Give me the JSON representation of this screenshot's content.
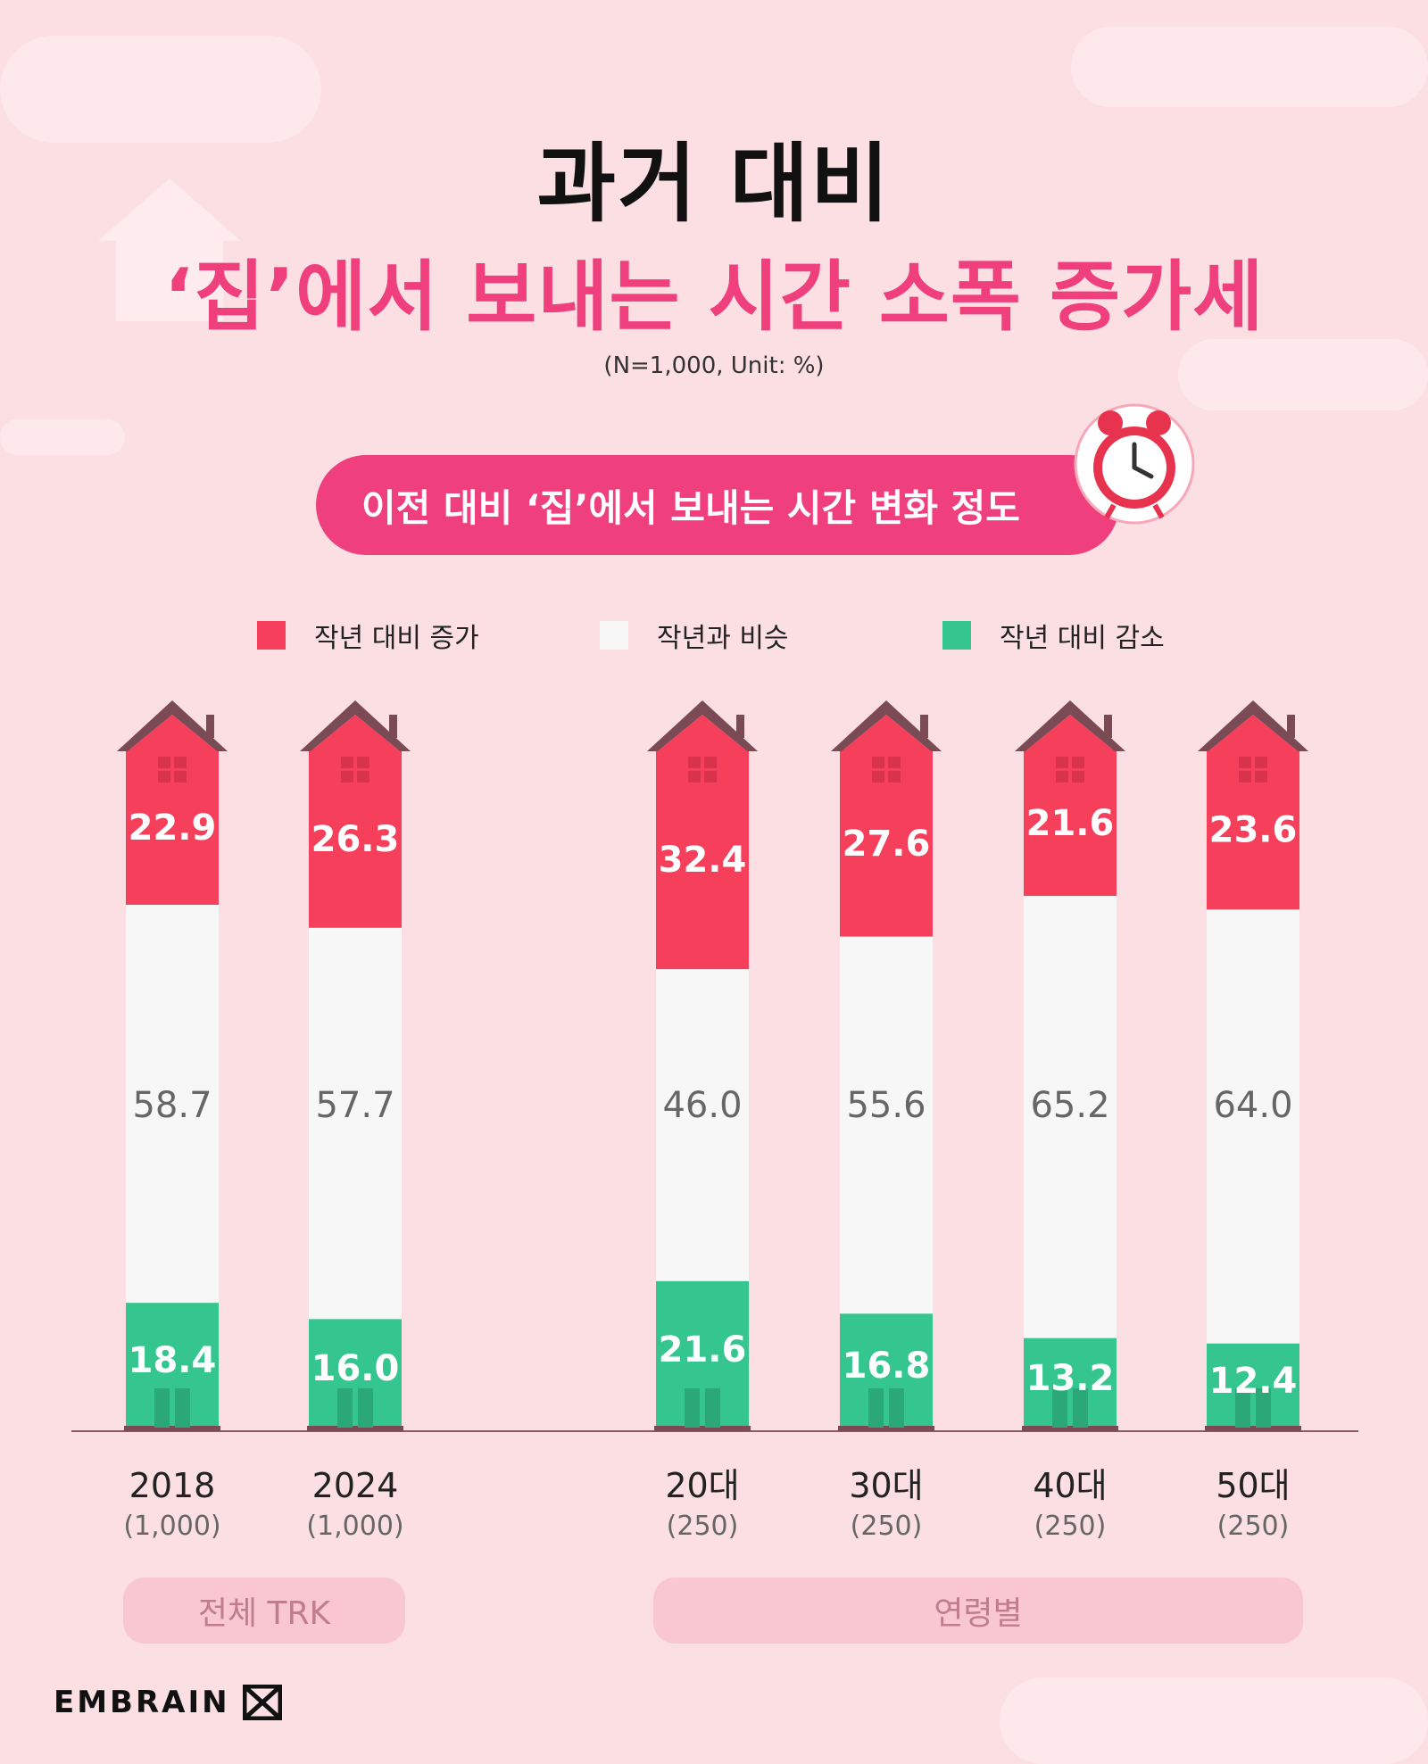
{
  "header": {
    "title_line1": "과거 대비",
    "title_line2": "‘집’에서 보내는 시간 소폭 증가세",
    "note": "(N=1,000,  Unit: %)",
    "pill_label": "이전 대비 ‘집’에서 보내는 시간 변화 정도"
  },
  "icons": {
    "clock": "alarm-clock-icon",
    "house": "house-icon",
    "brand_logo": "embrain-logo-icon"
  },
  "colors": {
    "increase": "#f53f5b",
    "similar": "#f7f7f7",
    "decrease": "#35c58f",
    "accent": "#ef3f7c",
    "roof": "#7a4a55"
  },
  "groups": [
    "전체 TRK",
    "연령별"
  ],
  "brand": "EMBRAIN",
  "chart_data": {
    "type": "bar",
    "stacked": true,
    "orientation": "vertical",
    "categories": [
      "2018",
      "2024",
      "20대",
      "30대",
      "40대",
      "50대"
    ],
    "category_sub": [
      "(1,000)",
      "(1,000)",
      "(250)",
      "(250)",
      "(250)",
      "(250)"
    ],
    "series": [
      {
        "name": "작년 대비 증가",
        "values": [
          22.9,
          26.3,
          32.4,
          27.6,
          21.6,
          23.6
        ]
      },
      {
        "name": "작년과 비슷",
        "values": [
          58.7,
          57.7,
          46.0,
          55.6,
          65.2,
          64.0
        ]
      },
      {
        "name": "작년 대비 감소",
        "values": [
          18.4,
          16.0,
          21.6,
          16.8,
          13.2,
          12.4
        ]
      }
    ],
    "legend_position": "top",
    "grid": false
  }
}
